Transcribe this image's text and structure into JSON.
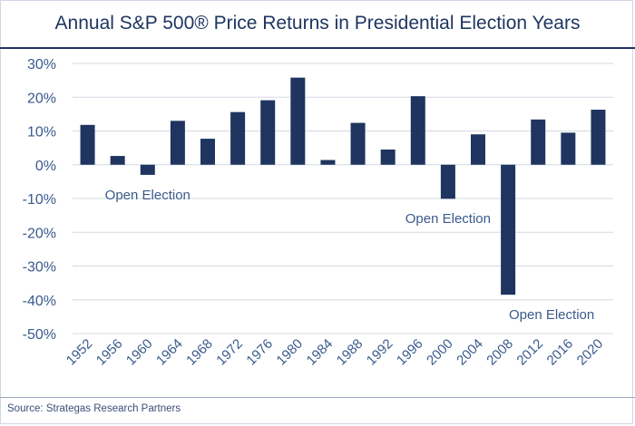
{
  "title_text": "Annual S&P 500® Price Returns in Presidential Election Years",
  "source_text": "Source: Strategas Research Partners",
  "colors": {
    "bar": "#1f3560",
    "text": "#3a5a8c",
    "grid": "#d3d8e2"
  },
  "chart_data": {
    "type": "bar",
    "title": "Annual S&P 500® Price Returns in Presidential Election Years",
    "xlabel": "",
    "ylabel": "",
    "categories": [
      "1952",
      "1956",
      "1960",
      "1964",
      "1968",
      "1972",
      "1976",
      "1980",
      "1984",
      "1988",
      "1992",
      "1996",
      "2000",
      "2004",
      "2008",
      "2012",
      "2016",
      "2020"
    ],
    "values": [
      11.8,
      2.6,
      -3.0,
      13.0,
      7.7,
      15.6,
      19.1,
      25.8,
      1.4,
      12.4,
      4.5,
      20.3,
      -10.1,
      9.0,
      -38.5,
      13.4,
      9.5,
      16.3
    ],
    "ylim": [
      -50,
      30
    ],
    "yticks": [
      30,
      20,
      10,
      0,
      -10,
      -20,
      -30,
      -40,
      -50
    ],
    "ytick_labels": [
      "30%",
      "20%",
      "10%",
      "0%",
      "-10%",
      "-20%",
      "-30%",
      "-40%",
      "-50%"
    ],
    "grid": true,
    "annotations": [
      {
        "text": "Open Election",
        "category": "1960"
      },
      {
        "text": "Open Election",
        "category": "2000"
      },
      {
        "text": "Open Election",
        "category": "2008"
      }
    ]
  }
}
